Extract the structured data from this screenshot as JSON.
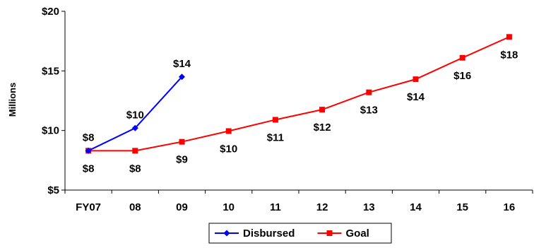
{
  "chart_data": {
    "type": "line",
    "categories": [
      "FY07",
      "08",
      "09",
      "10",
      "11",
      "12",
      "13",
      "14",
      "15",
      "16"
    ],
    "ylabel": "Millions",
    "ylim": [
      5,
      20
    ],
    "yticks": [
      5,
      10,
      15,
      20
    ],
    "ytick_labels": [
      "$5",
      "$10",
      "$15",
      "$20"
    ],
    "grid": false,
    "legend_position": "bottom-center",
    "series": [
      {
        "name": "Disbursed",
        "color": "#0000FF",
        "marker": "diamond",
        "values": [
          8.3,
          10.2,
          14.5,
          null,
          null,
          null,
          null,
          null,
          null,
          null
        ],
        "labels": [
          "$8",
          "$10",
          "$14",
          null,
          null,
          null,
          null,
          null,
          null,
          null
        ],
        "label_position": "above"
      },
      {
        "name": "Goal",
        "color": "#FF0000",
        "marker": "square",
        "values": [
          8.3,
          8.3,
          9.05,
          9.95,
          10.9,
          11.75,
          13.2,
          14.3,
          16.1,
          17.85
        ],
        "labels": [
          "$8",
          "$8",
          "$9",
          "$10",
          "$11",
          "$12",
          "$13",
          "$14",
          "$16",
          "$18"
        ],
        "label_position": "below"
      }
    ]
  }
}
